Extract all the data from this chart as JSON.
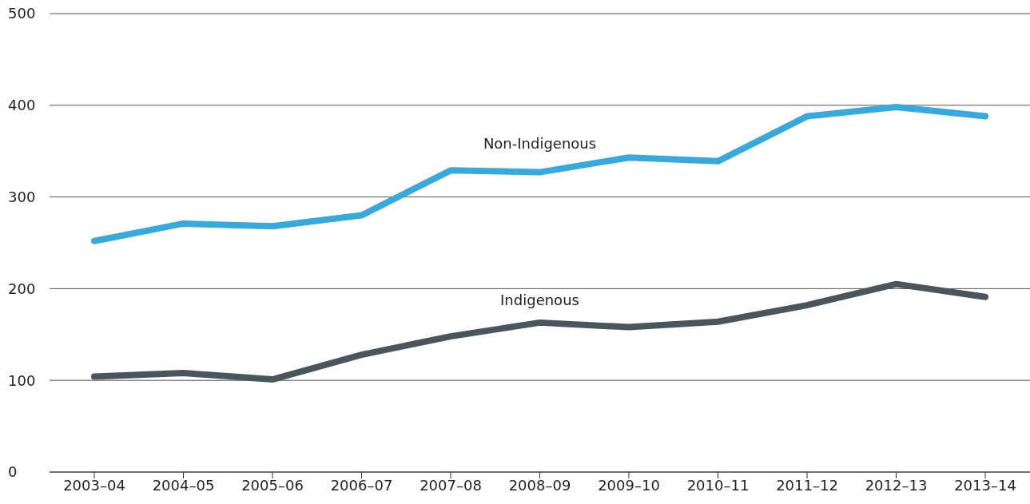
{
  "chart_data": {
    "type": "line",
    "categories": [
      "2003–04",
      "2004–05",
      "2005–06",
      "2006–07",
      "2007–08",
      "2008–09",
      "2009–10",
      "2010–11",
      "2011–12",
      "2012–13",
      "2013–14"
    ],
    "series": [
      {
        "name": "Non-Indigenous",
        "color": "#3aa8d8",
        "values": [
          252,
          271,
          268,
          280,
          329,
          327,
          343,
          339,
          388,
          398,
          388
        ]
      },
      {
        "name": "Indigenous",
        "color": "#4a565e",
        "values": [
          104,
          108,
          101,
          128,
          148,
          163,
          158,
          164,
          182,
          205,
          191
        ]
      }
    ],
    "ylim": [
      0,
      500
    ],
    "yticks": [
      0,
      100,
      200,
      300,
      400,
      500
    ],
    "grid": "y",
    "legend": false,
    "marker": "none",
    "line_style": "solid"
  }
}
